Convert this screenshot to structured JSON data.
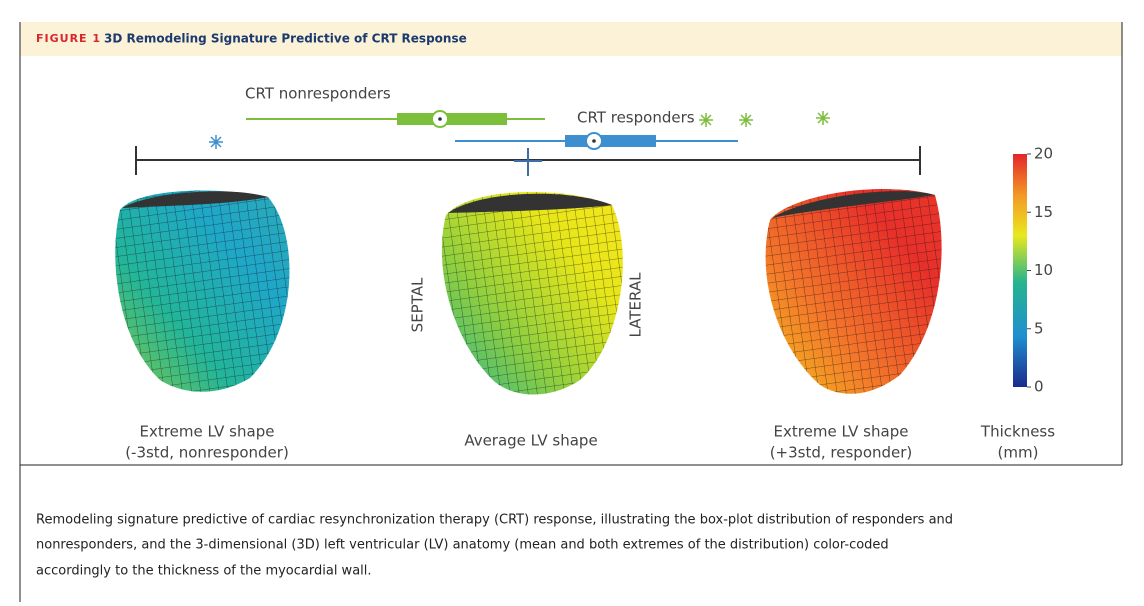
{
  "header": {
    "label": "FIGURE 1",
    "title": "3D Remodeling Signature Predictive of CRT Response"
  },
  "boxplot": {
    "nonresponders": "CRT nonresponders",
    "responders": "CRT responders"
  },
  "shapes": [
    {
      "label": [
        "Extreme LV shape",
        "(-3std, nonresponder)"
      ]
    },
    {
      "label": [
        "Average LV shape"
      ],
      "septal": "SEPTAL",
      "lateral": "LATERAL"
    },
    {
      "label": [
        "Extreme LV shape",
        "(+3std, responder)"
      ]
    }
  ],
  "colorbar": {
    "lim": [
      0,
      20
    ],
    "ticks": [
      0,
      5,
      10,
      15,
      20
    ],
    "label": [
      "Thickness",
      "(mm)"
    ]
  },
  "caption": [
    "Remodeling signature predictive of cardiac resynchronization therapy (CRT) response, illustrating the box-plot distribution of responders and",
    "nonresponders, and the 3-dimensional (3D) left ventricular (LV) anatomy (mean and both extremes of the distribution) color-coded",
    "accordingly to the thickness of the myocardial wall."
  ]
}
